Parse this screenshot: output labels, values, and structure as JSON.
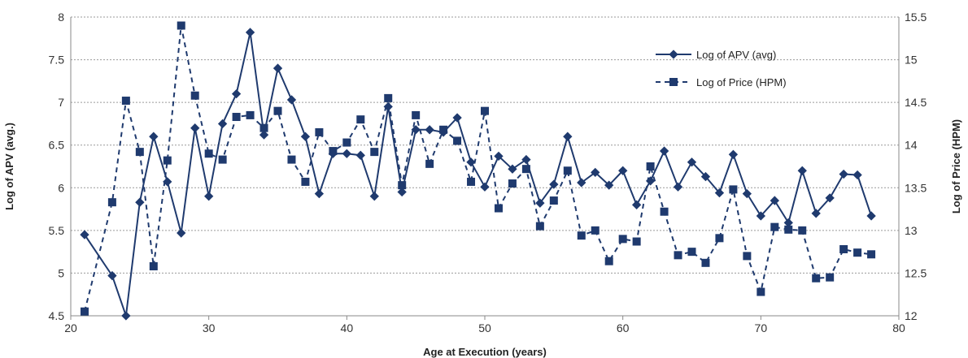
{
  "chart_data": {
    "type": "line",
    "xlabel": "Age at Execution (years)",
    "ylabel": "Log of APV (avg.)",
    "ylabel_right": "Log of Price (HPM)",
    "xlim": [
      20,
      80
    ],
    "ylim": [
      4.5,
      8
    ],
    "ylim_right": [
      12,
      15.5
    ],
    "x_ticks": [
      "20",
      "30",
      "40",
      "50",
      "60",
      "70",
      "80"
    ],
    "y_ticks": [
      "4.5",
      "5",
      "5.5",
      "6",
      "6.5",
      "7",
      "7.5",
      "8"
    ],
    "y_ticks_right": [
      "12",
      "12.5",
      "13",
      "13.5",
      "14",
      "14.5",
      "15",
      "15.5"
    ],
    "grid": "horizontal",
    "legend_position": "top-right",
    "series": [
      {
        "name": "Log of APV (avg)",
        "axis": "left",
        "style": "solid",
        "marker": "diamond",
        "color": "#1f3a6e",
        "points": [
          [
            21,
            5.45
          ],
          [
            23,
            4.97
          ],
          [
            24,
            4.5
          ],
          [
            25,
            5.83
          ],
          [
            26,
            6.6
          ],
          [
            27,
            6.07
          ],
          [
            28,
            5.47
          ],
          [
            29,
            6.7
          ],
          [
            30,
            5.9
          ],
          [
            31,
            6.75
          ],
          [
            32,
            7.1
          ],
          [
            33,
            7.82
          ],
          [
            34,
            6.62
          ],
          [
            35,
            7.4
          ],
          [
            36,
            7.03
          ],
          [
            37,
            6.6
          ],
          [
            38,
            5.93
          ],
          [
            39,
            6.4
          ],
          [
            40,
            6.4
          ],
          [
            41,
            6.38
          ],
          [
            42,
            5.9
          ],
          [
            43,
            6.95
          ],
          [
            44,
            5.95
          ],
          [
            45,
            6.68
          ],
          [
            46,
            6.68
          ],
          [
            47,
            6.65
          ],
          [
            48,
            6.82
          ],
          [
            49,
            6.3
          ],
          [
            50,
            6.01
          ],
          [
            51,
            6.37
          ],
          [
            52,
            6.22
          ],
          [
            53,
            6.33
          ],
          [
            54,
            5.82
          ],
          [
            55,
            6.04
          ],
          [
            56,
            6.6
          ],
          [
            57,
            6.06
          ],
          [
            58,
            6.18
          ],
          [
            59,
            6.03
          ],
          [
            60,
            6.2
          ],
          [
            61,
            5.8
          ],
          [
            62,
            6.08
          ],
          [
            63,
            6.43
          ],
          [
            64,
            6.01
          ],
          [
            65,
            6.3
          ],
          [
            66,
            6.13
          ],
          [
            67,
            5.94
          ],
          [
            68,
            6.39
          ],
          [
            69,
            5.93
          ],
          [
            70,
            5.67
          ],
          [
            71,
            5.85
          ],
          [
            72,
            5.59
          ],
          [
            73,
            6.2
          ],
          [
            74,
            5.7
          ],
          [
            75,
            5.88
          ],
          [
            76,
            6.16
          ],
          [
            77,
            6.15
          ],
          [
            78,
            5.67
          ]
        ]
      },
      {
        "name": "Log of Price (HPM)",
        "axis": "right",
        "style": "dashed",
        "marker": "square",
        "color": "#1f3a6e",
        "points": [
          [
            21,
            12.05
          ],
          [
            23,
            13.33
          ],
          [
            24,
            14.52
          ],
          [
            25,
            13.92
          ],
          [
            26,
            12.58
          ],
          [
            27,
            13.82
          ],
          [
            28,
            15.4
          ],
          [
            29,
            14.58
          ],
          [
            30,
            13.9
          ],
          [
            31,
            13.83
          ],
          [
            32,
            14.33
          ],
          [
            33,
            14.35
          ],
          [
            34,
            14.2
          ],
          [
            35,
            14.4
          ],
          [
            36,
            13.83
          ],
          [
            37,
            13.57
          ],
          [
            38,
            14.15
          ],
          [
            39,
            13.93
          ],
          [
            40,
            14.03
          ],
          [
            41,
            14.3
          ],
          [
            42,
            13.92
          ],
          [
            43,
            14.55
          ],
          [
            44,
            13.53
          ],
          [
            45,
            14.35
          ],
          [
            46,
            13.78
          ],
          [
            47,
            14.18
          ],
          [
            48,
            14.05
          ],
          [
            49,
            13.57
          ],
          [
            50,
            14.4
          ],
          [
            51,
            13.26
          ],
          [
            52,
            13.55
          ],
          [
            53,
            13.72
          ],
          [
            54,
            13.05
          ],
          [
            55,
            13.35
          ],
          [
            56,
            13.7
          ],
          [
            57,
            12.94
          ],
          [
            58,
            13.0
          ],
          [
            59,
            12.64
          ],
          [
            60,
            12.9
          ],
          [
            61,
            12.87
          ],
          [
            62,
            13.75
          ],
          [
            63,
            13.22
          ],
          [
            64,
            12.71
          ],
          [
            65,
            12.75
          ],
          [
            66,
            12.62
          ],
          [
            67,
            12.91
          ],
          [
            68,
            13.48
          ],
          [
            69,
            12.7
          ],
          [
            70,
            12.28
          ],
          [
            71,
            13.04
          ],
          [
            72,
            13.01
          ],
          [
            73,
            13.0
          ],
          [
            74,
            12.44
          ],
          [
            75,
            12.45
          ],
          [
            76,
            12.78
          ],
          [
            77,
            12.74
          ],
          [
            78,
            12.72
          ]
        ]
      }
    ]
  }
}
